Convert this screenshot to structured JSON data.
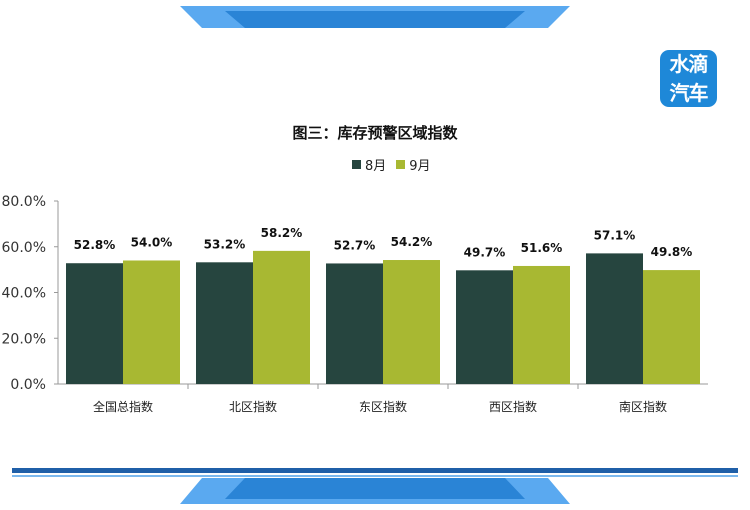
{
  "brand": {
    "logo_line1": "水滴",
    "logo_line2": "汽车",
    "frame_color": "#1e88d8",
    "frame_light": "#5aa9f0"
  },
  "chart_data": {
    "type": "bar",
    "title": "图三：库存预警区域指数",
    "categories": [
      "全国总指数",
      "北区指数",
      "东区指数",
      "西区指数",
      "南区指数"
    ],
    "series": [
      {
        "name": "8月",
        "values": [
          52.8,
          53.2,
          52.7,
          49.7,
          57.1
        ],
        "labels": [
          "52.8%",
          "53.2%",
          "52.7%",
          "49.7%",
          "57.1%"
        ],
        "color": "#26453f"
      },
      {
        "name": "9月",
        "values": [
          54.0,
          58.2,
          54.2,
          51.6,
          49.8
        ],
        "labels": [
          "54.0%",
          "58.2%",
          "54.2%",
          "51.6%",
          "49.8%"
        ],
        "color": "#a8b832"
      }
    ],
    "ylim": [
      0,
      80
    ],
    "yticks": [
      "0.0%",
      "20.0%",
      "40.0%",
      "60.0%",
      "80.0%"
    ],
    "ytick_values": [
      0,
      20,
      40,
      60,
      80
    ],
    "grid": false,
    "legend": "top-center"
  }
}
